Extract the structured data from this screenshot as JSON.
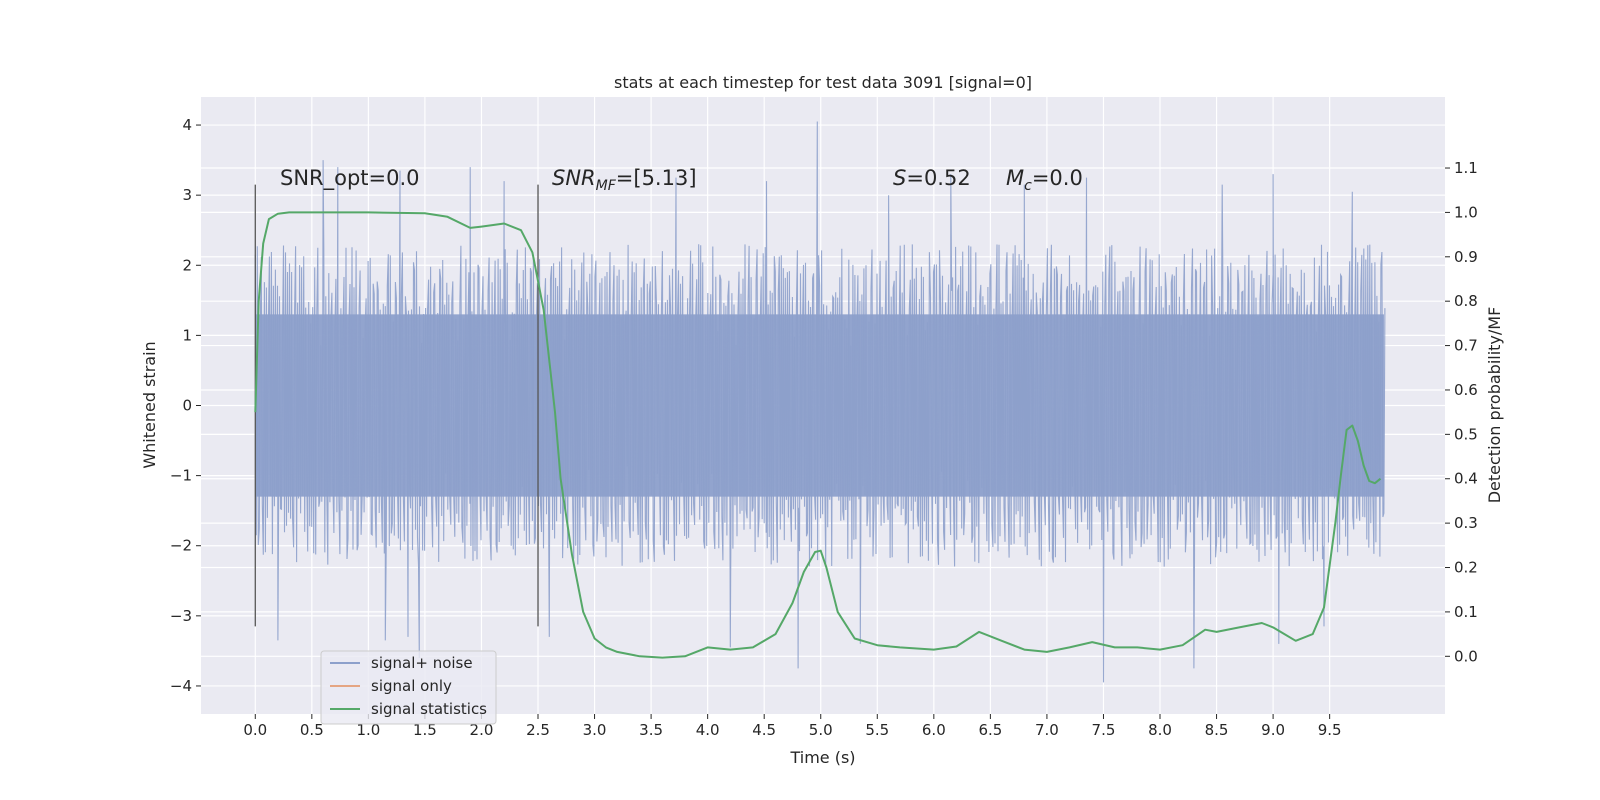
{
  "chart_data": {
    "type": "line",
    "title": "stats at each timestep for test data 3091 [signal=0]",
    "xlabel": "Time (s)",
    "ylabel": "Whitened strain",
    "ylabel_right": "Detection probability/MF",
    "xlim": [
      -0.48,
      10.52
    ],
    "ylim": [
      -4.4,
      4.4
    ],
    "ylim_right": [
      -0.13,
      1.26
    ],
    "grid": true,
    "legend_position": "lower-left",
    "x_ticks": [
      "0.0",
      "0.5",
      "1.0",
      "1.5",
      "2.0",
      "2.5",
      "3.0",
      "3.5",
      "4.0",
      "4.5",
      "5.0",
      "5.5",
      "6.0",
      "6.5",
      "7.0",
      "7.5",
      "8.0",
      "8.5",
      "9.0",
      "9.5"
    ],
    "y_ticks": [
      "4",
      "3",
      "2",
      "1",
      "0",
      "−1",
      "−2",
      "−3",
      "−4"
    ],
    "y_right_ticks": [
      "1.1",
      "1.0",
      "0.9",
      "0.8",
      "0.7",
      "0.6",
      "0.5",
      "0.4",
      "0.3",
      "0.2",
      "0.1",
      "0.0"
    ],
    "annotations": {
      "snr_opt": "SNR_opt=0.0",
      "snr_mf_prefix": "SNR",
      "snr_mf_sub": "MF",
      "snr_mf_suffix": "=[5.13]",
      "s_prefix": "S",
      "s_suffix": "=0.52",
      "mc_prefix": "M",
      "mc_sub": "c",
      "mc_suffix": "=0.0"
    },
    "vertical_lines": [
      {
        "x": 0.0,
        "y_from": -3.15,
        "y_to": 3.15
      },
      {
        "x": 2.5,
        "y_from": -3.15,
        "y_to": 3.15
      }
    ],
    "series": [
      {
        "name": "signal+ noise",
        "color": "#8da0cb",
        "kind": "noise",
        "x_range": [
          0.0,
          9.98
        ],
        "band": [
          -1.3,
          1.3
        ],
        "typical_max": 2.3,
        "peaks_high": [
          [
            0.6,
            3.5
          ],
          [
            0.73,
            3.4
          ],
          [
            1.28,
            3.35
          ],
          [
            1.9,
            3.4
          ],
          [
            2.2,
            3.2
          ],
          [
            3.72,
            3.25
          ],
          [
            4.52,
            3.2
          ],
          [
            4.97,
            4.05
          ],
          [
            5.6,
            3.0
          ],
          [
            6.15,
            3.3
          ],
          [
            6.8,
            3.15
          ],
          [
            7.35,
            3.25
          ],
          [
            8.55,
            3.15
          ],
          [
            9.0,
            3.3
          ],
          [
            9.7,
            3.05
          ]
        ],
        "peaks_low": [
          [
            0.2,
            -3.35
          ],
          [
            1.15,
            -3.35
          ],
          [
            1.35,
            -3.3
          ],
          [
            1.45,
            -3.6
          ],
          [
            2.6,
            -3.3
          ],
          [
            4.2,
            -3.45
          ],
          [
            4.8,
            -3.75
          ],
          [
            5.35,
            -3.4
          ],
          [
            7.5,
            -3.95
          ],
          [
            8.3,
            -3.75
          ],
          [
            9.05,
            -3.4
          ],
          [
            9.45,
            -3.15
          ]
        ]
      },
      {
        "name": "signal only",
        "color": "#e5a582",
        "kind": "flat",
        "x": [],
        "y": []
      },
      {
        "name": "signal statistics",
        "color": "#55a868",
        "kind": "line",
        "axis": "right",
        "x": [
          0.0,
          0.03,
          0.07,
          0.12,
          0.2,
          0.3,
          0.5,
          1.0,
          1.5,
          1.7,
          1.9,
          2.0,
          2.2,
          2.35,
          2.45,
          2.55,
          2.65,
          2.7,
          2.8,
          2.9,
          3.0,
          3.1,
          3.2,
          3.4,
          3.6,
          3.8,
          4.0,
          4.2,
          4.4,
          4.6,
          4.75,
          4.85,
          4.95,
          5.0,
          5.05,
          5.15,
          5.3,
          5.5,
          5.7,
          6.0,
          6.2,
          6.4,
          6.6,
          6.8,
          7.0,
          7.2,
          7.4,
          7.6,
          7.8,
          8.0,
          8.2,
          8.4,
          8.5,
          8.7,
          8.9,
          9.0,
          9.2,
          9.35,
          9.45,
          9.55,
          9.6,
          9.65,
          9.7,
          9.75,
          9.8,
          9.85,
          9.9,
          9.95
        ],
        "y": [
          0.55,
          0.8,
          0.93,
          0.985,
          0.997,
          1.0,
          1.0,
          1.0,
          0.998,
          0.99,
          0.965,
          0.968,
          0.975,
          0.96,
          0.91,
          0.78,
          0.55,
          0.4,
          0.23,
          0.1,
          0.04,
          0.02,
          0.01,
          0.0,
          -0.003,
          0.0,
          0.02,
          0.015,
          0.02,
          0.05,
          0.12,
          0.19,
          0.235,
          0.238,
          0.2,
          0.1,
          0.04,
          0.025,
          0.02,
          0.015,
          0.022,
          0.055,
          0.035,
          0.015,
          0.01,
          0.02,
          0.032,
          0.02,
          0.02,
          0.015,
          0.025,
          0.06,
          0.055,
          0.065,
          0.075,
          0.065,
          0.035,
          0.05,
          0.11,
          0.3,
          0.41,
          0.51,
          0.52,
          0.485,
          0.43,
          0.395,
          0.39,
          0.4
        ]
      }
    ]
  }
}
